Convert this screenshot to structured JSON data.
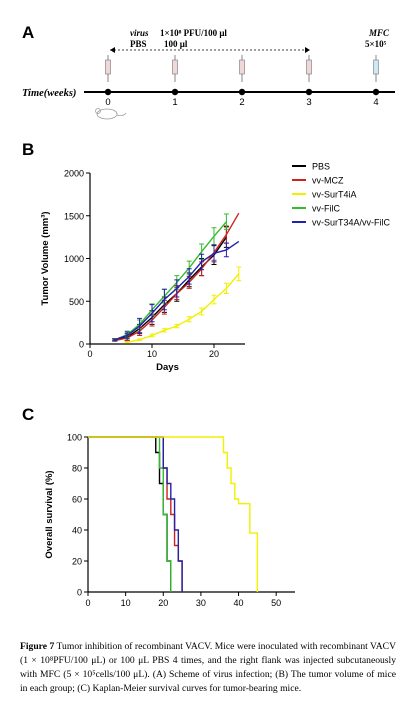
{
  "panels": {
    "a": {
      "label": "A",
      "virus_label": "virus",
      "virus_dose": "1×10⁸ PFU/100 μl",
      "pbs_label": "PBS",
      "pbs_dose": "100 μl",
      "mfc_label": "MFC",
      "mfc_dose": "5×10⁵",
      "axis_label": "Time(weeks)",
      "ticks": [
        "0",
        "1",
        "2",
        "3",
        "4"
      ],
      "virus_injection_weeks": [
        0,
        1,
        2,
        3
      ],
      "mfc_injection_week": 4
    },
    "b": {
      "label": "B"
    },
    "c": {
      "label": "C"
    }
  },
  "chart_data": [
    {
      "type": "line",
      "xlabel": "Days",
      "ylabel": "Tumor Volume (mm³)",
      "xlim": [
        0,
        25
      ],
      "ylim": [
        0,
        2000
      ],
      "xticks": [
        "0",
        "10",
        "20"
      ],
      "yticks": [
        "0",
        "500",
        "1000",
        "1500",
        "2000"
      ],
      "legend": "top-right",
      "series": [
        {
          "name": "PBS",
          "color": "#000000",
          "x": [
            4,
            6,
            8,
            10,
            12,
            14,
            16,
            18,
            20,
            22
          ],
          "y": [
            50,
            80,
            180,
            310,
            460,
            590,
            750,
            900,
            1040,
            1250
          ],
          "err": [
            15,
            40,
            50,
            80,
            90,
            90,
            80,
            100,
            110,
            120
          ]
        },
        {
          "name": "vv-MCZ",
          "color": "#cc2222",
          "x": [
            4,
            6,
            8,
            10,
            12,
            14,
            16,
            18,
            20,
            22,
            24
          ],
          "y": [
            40,
            70,
            150,
            280,
            430,
            590,
            720,
            880,
            1070,
            1280,
            1530
          ],
          "err": [
            10,
            30,
            50,
            70,
            80,
            70,
            70,
            80,
            90,
            100,
            0
          ]
        },
        {
          "name": "vv-SurT4iA",
          "color": "#f0f000",
          "x": [
            6,
            8,
            10,
            12,
            14,
            16,
            18,
            20,
            22,
            24
          ],
          "y": [
            20,
            50,
            100,
            160,
            210,
            290,
            380,
            520,
            650,
            820
          ],
          "err": [
            5,
            10,
            15,
            20,
            20,
            30,
            40,
            50,
            60,
            80
          ]
        },
        {
          "name": "vv-FilC",
          "color": "#33bb33",
          "x": [
            4,
            6,
            8,
            10,
            12,
            14,
            16,
            18,
            20,
            22
          ],
          "y": [
            50,
            110,
            230,
            400,
            560,
            720,
            890,
            1080,
            1260,
            1430
          ],
          "err": [
            15,
            40,
            50,
            70,
            80,
            80,
            80,
            90,
            100,
            90
          ]
        },
        {
          "name": "vv-SurT34A/vv-FilC",
          "color": "#2222aa",
          "x": [
            4,
            6,
            8,
            10,
            12,
            14,
            16,
            18,
            20,
            22,
            24
          ],
          "y": [
            50,
            100,
            210,
            360,
            520,
            650,
            790,
            960,
            1060,
            1100,
            1200
          ],
          "err": [
            10,
            40,
            90,
            100,
            120,
            100,
            90,
            90,
            100,
            80,
            0
          ]
        }
      ]
    },
    {
      "type": "line",
      "step": true,
      "ylabel": "Overall  survival (%)",
      "xlim": [
        0,
        55
      ],
      "ylim": [
        0,
        100
      ],
      "xticks": [
        "0",
        "10",
        "20",
        "30",
        "40",
        "50"
      ],
      "yticks": [
        "0",
        "20",
        "40",
        "60",
        "80",
        "100"
      ],
      "series": [
        {
          "color": "#000000",
          "x": [
            0,
            18,
            19,
            20,
            21,
            22
          ],
          "y": [
            100,
            90,
            70,
            50,
            20,
            0
          ]
        },
        {
          "color": "#33bb33",
          "x": [
            0,
            19,
            20,
            21,
            22
          ],
          "y": [
            100,
            80,
            50,
            20,
            0
          ]
        },
        {
          "color": "#cc2222",
          "x": [
            0,
            20,
            21,
            22,
            23,
            24,
            25
          ],
          "y": [
            100,
            80,
            60,
            50,
            30,
            20,
            0
          ]
        },
        {
          "color": "#2222aa",
          "x": [
            0,
            20,
            21,
            22,
            23,
            24,
            25
          ],
          "y": [
            100,
            80,
            70,
            60,
            40,
            20,
            0
          ]
        },
        {
          "color": "#f0f000",
          "x": [
            0,
            36,
            37,
            38,
            39,
            40,
            41,
            43,
            44,
            45
          ],
          "y": [
            100,
            90,
            80,
            70,
            60,
            57,
            57,
            38,
            38,
            0
          ]
        }
      ]
    }
  ],
  "caption": {
    "figure_label": "Figure 7",
    "text": "Tumor inhibition of recombinant VACV. Mice were inoculated with recombinant VACV (1 × 10⁸PFU/100 μL) or 100 μL PBS 4 times, and the right flank was injected subcutaneously with MFC (5 × 10⁵cells/100 μL). (A) Scheme of virus infection; (B) The tumor volume of mice in each group; (C) Kaplan-Meier survival curves for tumor-bearing mice."
  }
}
